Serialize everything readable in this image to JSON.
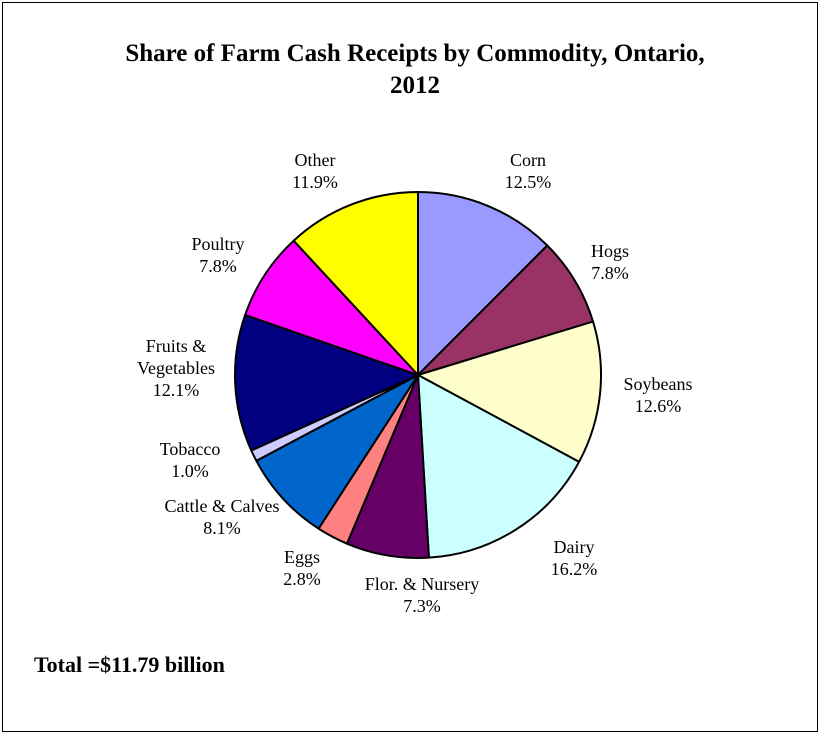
{
  "chart_data": {
    "type": "pie",
    "title_lines": [
      "Share of Farm Cash Receipts by Commodity, Ontario,",
      "2012"
    ],
    "slices": [
      {
        "name": "Corn",
        "label_lines": [
          "Corn"
        ],
        "value": 12.5,
        "display": "12.5%",
        "color": "#9999FF"
      },
      {
        "name": "Hogs",
        "label_lines": [
          "Hogs"
        ],
        "value": 7.8,
        "display": "7.8%",
        "color": "#993366"
      },
      {
        "name": "Soybeans",
        "label_lines": [
          "Soybeans"
        ],
        "value": 12.6,
        "display": "12.6%",
        "color": "#FFFFCC"
      },
      {
        "name": "Dairy",
        "label_lines": [
          "Dairy"
        ],
        "value": 16.2,
        "display": "16.2%",
        "color": "#CCFFFF"
      },
      {
        "name": "Flor. & Nursery",
        "label_lines": [
          "Flor. & Nursery"
        ],
        "value": 7.3,
        "display": "7.3%",
        "color": "#660066"
      },
      {
        "name": "Eggs",
        "label_lines": [
          "Eggs"
        ],
        "value": 2.8,
        "display": "2.8%",
        "color": "#FF8080"
      },
      {
        "name": "Cattle & Calves",
        "label_lines": [
          "Cattle & Calves"
        ],
        "value": 8.1,
        "display": "8.1%",
        "color": "#0066CC"
      },
      {
        "name": "Tobacco",
        "label_lines": [
          "Tobacco"
        ],
        "value": 1.0,
        "display": "1.0%",
        "color": "#CCCCFF"
      },
      {
        "name": "Fruits & Vegetables",
        "label_lines": [
          "Fruits &",
          "Vegetables"
        ],
        "value": 12.1,
        "display": "12.1%",
        "color": "#000080"
      },
      {
        "name": "Poultry",
        "label_lines": [
          "Poultry"
        ],
        "value": 7.8,
        "display": "7.8%",
        "color": "#FF00FF"
      },
      {
        "name": "Other",
        "label_lines": [
          "Other"
        ],
        "value": 11.9,
        "display": "11.9%",
        "color": "#FFFF00"
      }
    ],
    "start_angle_deg": 0,
    "direction": "clockwise",
    "total_text": "Total =$11.79 billion"
  }
}
